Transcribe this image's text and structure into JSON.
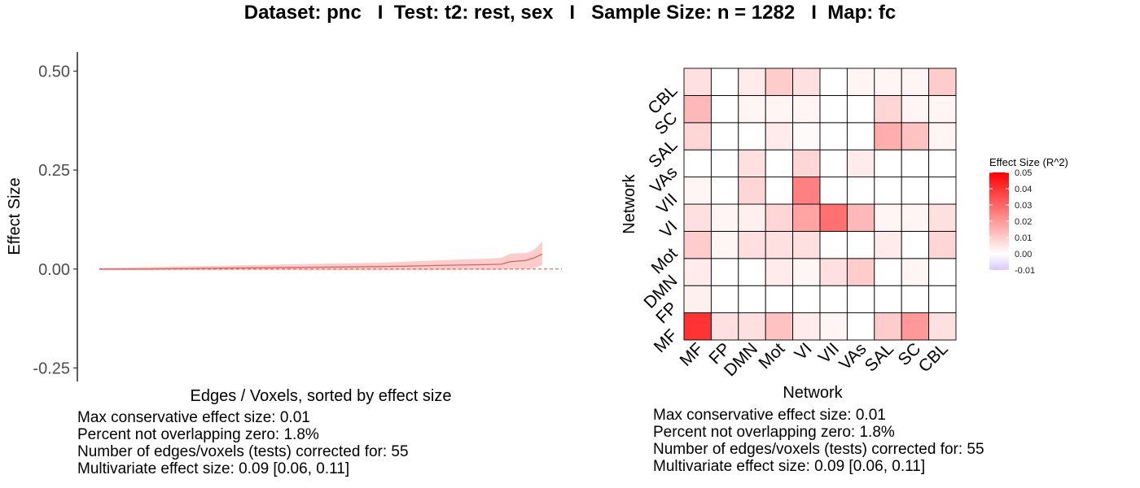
{
  "title": "Dataset: pnc   I  Test: t2: rest, sex   I   Sample Size: n = 1282   I  Map: fc",
  "chart_data": [
    {
      "type": "line",
      "title": "",
      "xlabel": "Edges / Voxels, sorted by effect size",
      "ylabel": "Effect Size",
      "ylim": [
        -0.28,
        0.54
      ],
      "yticks": [
        -0.25,
        0.0,
        0.25,
        0.5
      ],
      "ytick_labels": [
        "-0.25",
        "0.00",
        "0.25",
        "0.50"
      ],
      "series": [
        {
          "name": "effect size",
          "x": [
            1,
            5,
            10,
            15,
            20,
            25,
            30,
            35,
            38,
            40,
            42,
            45,
            48,
            50,
            51,
            52,
            53,
            54,
            55
          ],
          "values": [
            0.0,
            0.0,
            0.001,
            0.002,
            0.003,
            0.004,
            0.005,
            0.006,
            0.007,
            0.008,
            0.009,
            0.01,
            0.011,
            0.012,
            0.018,
            0.02,
            0.022,
            0.028,
            0.038
          ],
          "lower": [
            -0.003,
            -0.003,
            -0.003,
            -0.003,
            -0.003,
            -0.003,
            -0.003,
            -0.003,
            -0.003,
            -0.003,
            -0.003,
            -0.002,
            -0.002,
            -0.002,
            0.0,
            0.0,
            0.0,
            0.002,
            0.01
          ],
          "upper": [
            0.002,
            0.004,
            0.006,
            0.008,
            0.01,
            0.012,
            0.014,
            0.016,
            0.018,
            0.02,
            0.022,
            0.024,
            0.026,
            0.028,
            0.038,
            0.04,
            0.04,
            0.048,
            0.07
          ]
        }
      ],
      "hline": 0
    },
    {
      "type": "heatmap",
      "title": "",
      "xlabel": "Network",
      "ylabel": "Network",
      "x_categories": [
        "MF",
        "FP",
        "DMN",
        "Mot",
        "VI",
        "VII",
        "VAs",
        "SAL",
        "SC",
        "CBL"
      ],
      "y_categories": [
        "MF",
        "FP",
        "DMN",
        "Mot",
        "VI",
        "VII",
        "VAs",
        "SAL",
        "SC",
        "CBL"
      ],
      "values": [
        [
          0.04,
          0.006,
          0.006,
          0.012,
          0.004,
          0.002,
          0.0,
          0.01,
          0.02,
          0.006
        ],
        [
          0.003,
          0.0,
          0.0,
          0.0,
          0.0,
          0.0,
          0.0,
          0.0,
          0.0,
          0.0
        ],
        [
          0.004,
          0.0,
          0.0,
          0.004,
          0.002,
          0.006,
          0.01,
          0.0,
          0.002,
          0.0
        ],
        [
          0.01,
          0.002,
          0.006,
          0.006,
          0.006,
          0.0,
          0.0,
          0.004,
          0.0,
          0.008
        ],
        [
          0.006,
          0.002,
          0.003,
          0.008,
          0.018,
          0.028,
          0.014,
          0.002,
          0.002,
          0.006
        ],
        [
          0.002,
          0.0,
          0.008,
          0.0,
          0.025,
          0.0,
          0.0,
          0.0,
          0.0,
          0.0
        ],
        [
          0.0,
          0.0,
          0.006,
          0.0,
          0.008,
          0.0,
          0.004,
          0.0,
          0.0,
          0.0
        ],
        [
          0.008,
          0.0,
          0.0,
          0.004,
          0.001,
          0.0,
          0.0,
          0.016,
          0.012,
          0.002
        ],
        [
          0.014,
          0.0,
          0.002,
          0.002,
          0.002,
          0.0,
          0.0,
          0.008,
          0.002,
          0.002
        ],
        [
          0.006,
          0.0,
          0.004,
          0.01,
          0.006,
          0.0,
          0.002,
          0.002,
          0.002,
          0.01
        ]
      ],
      "legend": {
        "title": "Effect Size (R^2)",
        "min": -0.01,
        "max": 0.05,
        "ticks": [
          0.05,
          0.04,
          0.03,
          0.02,
          0.01,
          0.0,
          -0.01
        ],
        "tick_labels": [
          "0.05",
          "0.04",
          "0.03",
          "0.02",
          "0.01",
          "0.00",
          "-0.01"
        ],
        "colors": {
          "high": "#ff0000",
          "mid": "#ffffff",
          "low": "#d6c8ff"
        }
      }
    }
  ],
  "stats_left": [
    "Max conservative effect size: 0.01",
    "Percent not overlapping zero: 1.8%",
    "Number of edges/voxels (tests) corrected for: 55",
    "Multivariate effect size: 0.09 [0.06, 0.11]"
  ],
  "stats_right": [
    "Max conservative effect size: 0.01",
    "Percent not overlapping zero: 1.8%",
    "Number of edges/voxels (tests) corrected for: 55",
    "Multivariate effect size: 0.09 [0.06, 0.11]"
  ],
  "colors": {
    "line": "#e06060",
    "band": "#fcc8c4",
    "zero_line": "#e07060"
  }
}
